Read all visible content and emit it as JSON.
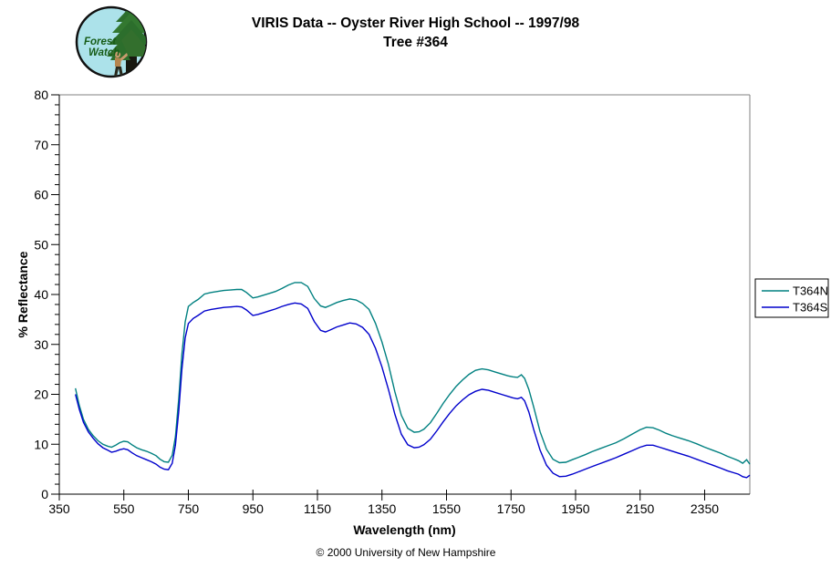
{
  "header": {
    "logo": {
      "line1": "Forest",
      "line2": "Watch"
    },
    "title_line1": "VIRIS Data -- Oyster River High School -- 1997/98",
    "title_line2": "Tree #364"
  },
  "footer": {
    "credit": "© 2000 University of New Hampshire"
  },
  "legend": {
    "entries": [
      "T364N",
      "T364S"
    ]
  },
  "chart_data": {
    "type": "line",
    "title": "VIRIS Data -- Oyster River High School -- 1997/98 Tree #364",
    "xlabel": "Wavelength (nm)",
    "ylabel": "% Reflectance",
    "xlim": [
      350,
      2490
    ],
    "ylim": [
      0,
      80
    ],
    "xticks": [
      350,
      550,
      750,
      950,
      1150,
      1350,
      1550,
      1750,
      1950,
      2150,
      2350
    ],
    "yticks": [
      0,
      10,
      20,
      30,
      40,
      50,
      60,
      70,
      80
    ],
    "y_minor_step": 2,
    "grid": "off",
    "legend_position": "right",
    "axis_color": "#000000",
    "frame_color": "#808080",
    "x": [
      400,
      412,
      425,
      440,
      455,
      470,
      485,
      500,
      512,
      525,
      537,
      550,
      562,
      575,
      590,
      605,
      620,
      635,
      650,
      662,
      675,
      688,
      700,
      710,
      720,
      730,
      740,
      750,
      765,
      780,
      800,
      820,
      840,
      860,
      880,
      900,
      915,
      930,
      950,
      965,
      980,
      1000,
      1020,
      1040,
      1060,
      1080,
      1100,
      1120,
      1140,
      1160,
      1175,
      1190,
      1210,
      1230,
      1250,
      1270,
      1290,
      1310,
      1330,
      1350,
      1370,
      1390,
      1410,
      1430,
      1450,
      1465,
      1480,
      1500,
      1520,
      1540,
      1560,
      1580,
      1600,
      1620,
      1640,
      1660,
      1680,
      1700,
      1720,
      1740,
      1755,
      1770,
      1782,
      1792,
      1805,
      1820,
      1840,
      1860,
      1880,
      1900,
      1920,
      1940,
      1960,
      1980,
      2000,
      2025,
      2050,
      2075,
      2100,
      2125,
      2150,
      2170,
      2190,
      2210,
      2230,
      2250,
      2275,
      2300,
      2325,
      2350,
      2375,
      2400,
      2420,
      2440,
      2455,
      2468,
      2480,
      2490
    ],
    "series": [
      {
        "name": "T364N",
        "color": "#008080",
        "values": [
          21.2,
          17.8,
          15.0,
          13.0,
          11.7,
          10.7,
          10.0,
          9.6,
          9.4,
          9.8,
          10.3,
          10.6,
          10.5,
          9.9,
          9.3,
          8.9,
          8.6,
          8.2,
          7.7,
          7.0,
          6.5,
          6.4,
          7.8,
          11.5,
          19.0,
          28.0,
          34.5,
          37.6,
          38.4,
          39.0,
          40.1,
          40.4,
          40.6,
          40.8,
          40.9,
          41.0,
          41.0,
          40.4,
          39.3,
          39.5,
          39.8,
          40.2,
          40.6,
          41.2,
          41.9,
          42.4,
          42.4,
          41.6,
          39.2,
          37.7,
          37.4,
          37.8,
          38.4,
          38.8,
          39.1,
          38.9,
          38.2,
          37.0,
          34.2,
          30.5,
          26.0,
          20.5,
          15.8,
          13.2,
          12.4,
          12.5,
          13.0,
          14.3,
          16.2,
          18.2,
          20.0,
          21.6,
          22.9,
          24.0,
          24.8,
          25.1,
          24.9,
          24.5,
          24.1,
          23.7,
          23.5,
          23.4,
          23.9,
          23.2,
          21.0,
          17.5,
          12.5,
          9.0,
          7.0,
          6.3,
          6.4,
          6.9,
          7.4,
          7.9,
          8.5,
          9.1,
          9.7,
          10.3,
          11.1,
          12.0,
          12.9,
          13.4,
          13.3,
          12.8,
          12.2,
          11.7,
          11.2,
          10.7,
          10.1,
          9.4,
          8.8,
          8.2,
          7.6,
          7.1,
          6.7,
          6.2,
          6.9,
          6.0
        ]
      },
      {
        "name": "T364S",
        "color": "#0000cc",
        "values": [
          20.0,
          17.0,
          14.4,
          12.5,
          11.2,
          10.1,
          9.3,
          8.8,
          8.4,
          8.6,
          8.9,
          9.1,
          8.9,
          8.3,
          7.7,
          7.3,
          6.9,
          6.5,
          6.0,
          5.4,
          5.0,
          4.9,
          6.2,
          9.8,
          16.5,
          25.0,
          31.3,
          34.2,
          35.2,
          35.8,
          36.7,
          37.0,
          37.2,
          37.4,
          37.5,
          37.6,
          37.5,
          36.9,
          35.8,
          36.0,
          36.3,
          36.7,
          37.1,
          37.6,
          38.0,
          38.3,
          38.1,
          37.2,
          34.6,
          32.8,
          32.5,
          32.9,
          33.5,
          33.9,
          34.3,
          34.1,
          33.4,
          32.0,
          29.2,
          25.5,
          21.0,
          16.0,
          12.0,
          9.9,
          9.3,
          9.4,
          9.9,
          11.0,
          12.7,
          14.5,
          16.2,
          17.7,
          18.9,
          19.9,
          20.6,
          21.0,
          20.8,
          20.4,
          20.0,
          19.6,
          19.3,
          19.1,
          19.4,
          18.7,
          16.5,
          13.0,
          8.8,
          5.8,
          4.2,
          3.5,
          3.6,
          4.0,
          4.5,
          5.0,
          5.5,
          6.1,
          6.7,
          7.3,
          8.0,
          8.7,
          9.4,
          9.8,
          9.8,
          9.4,
          9.0,
          8.6,
          8.1,
          7.6,
          7.0,
          6.4,
          5.8,
          5.2,
          4.7,
          4.3,
          4.0,
          3.5,
          3.3,
          3.8
        ]
      }
    ]
  }
}
